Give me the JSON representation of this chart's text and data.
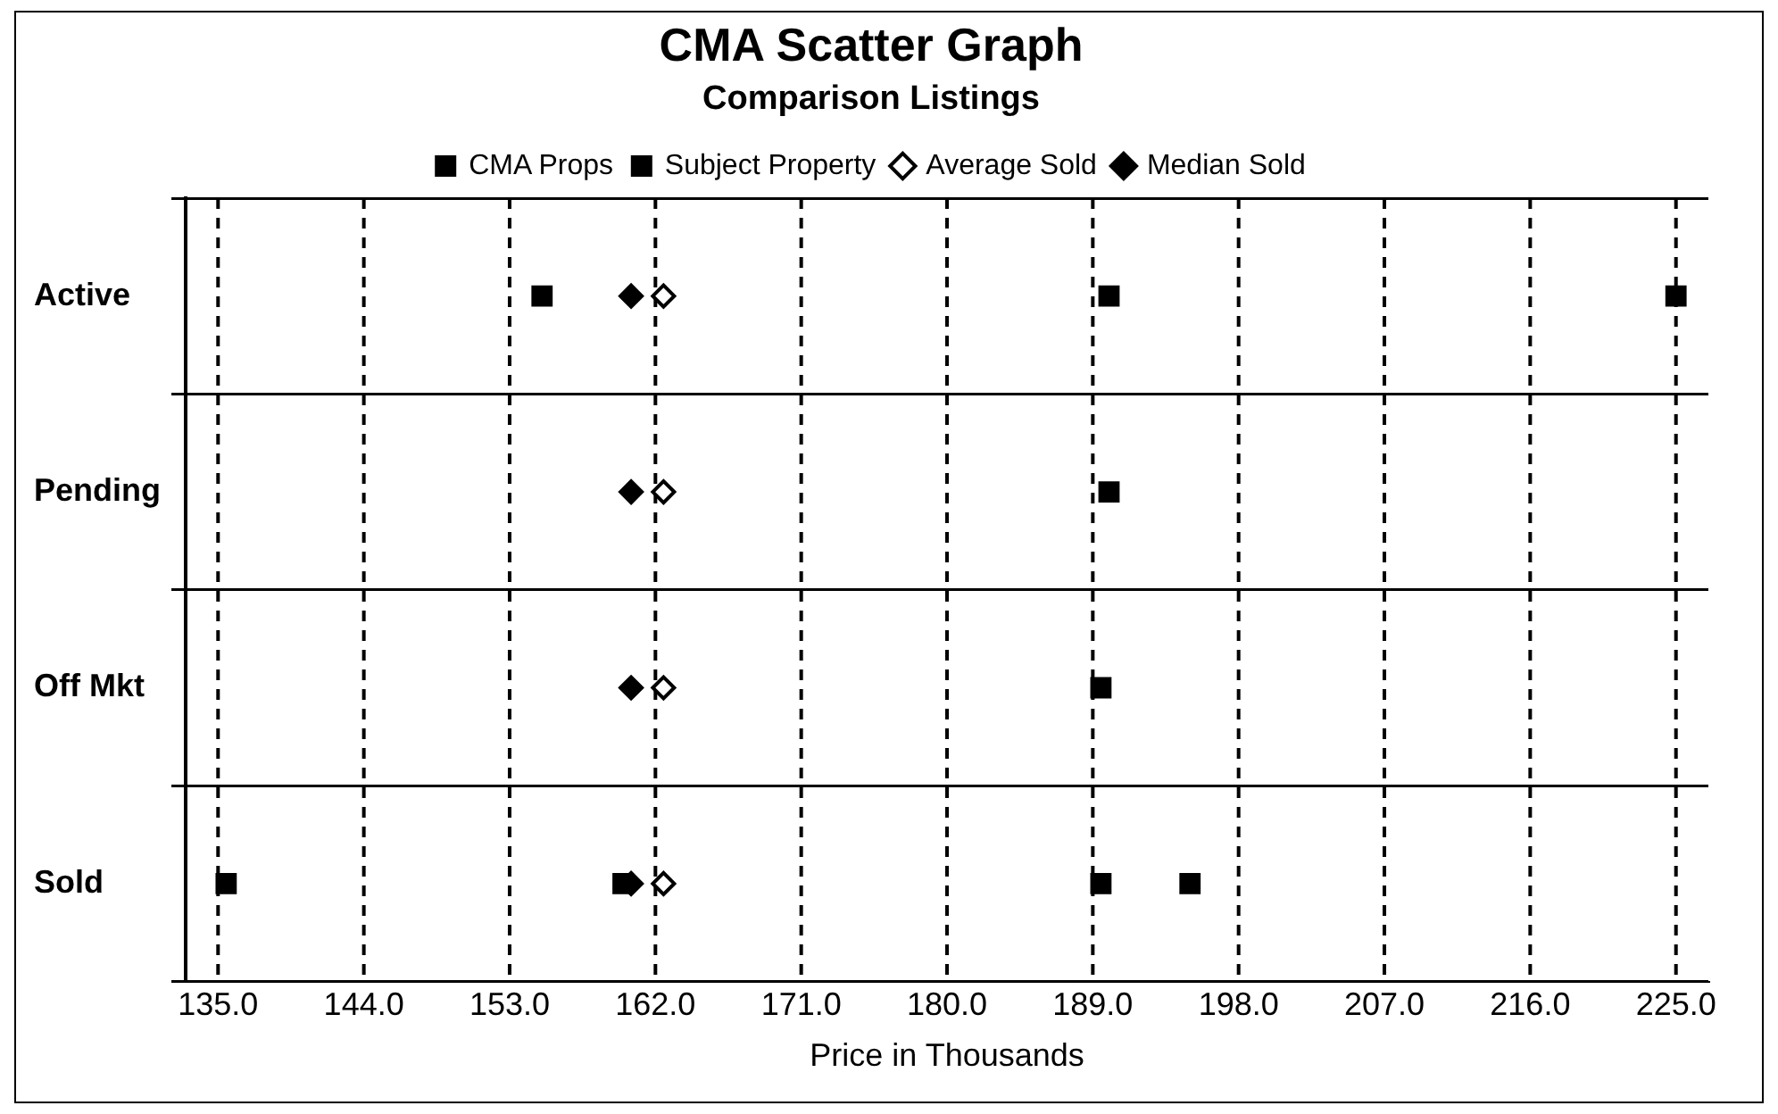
{
  "chart_data": {
    "type": "scatter",
    "title": "CMA Scatter Graph",
    "subtitle": "Comparison Listings",
    "xlabel": "Price in Thousands",
    "orientation": "horizontal",
    "categories": [
      "Active",
      "Pending",
      "Off Mkt",
      "Sold"
    ],
    "xlim": [
      133,
      227
    ],
    "xticks": [
      {
        "value": 135,
        "label": "135.0"
      },
      {
        "value": 144,
        "label": "144.0"
      },
      {
        "value": 153,
        "label": "153.0"
      },
      {
        "value": 162,
        "label": "162.0"
      },
      {
        "value": 171,
        "label": "171.0"
      },
      {
        "value": 180,
        "label": "180.0"
      },
      {
        "value": 189,
        "label": "189.0"
      },
      {
        "value": 198,
        "label": "198.0"
      },
      {
        "value": 207,
        "label": "207.0"
      },
      {
        "value": 216,
        "label": "216.0"
      },
      {
        "value": 225,
        "label": "225.0"
      }
    ],
    "grid": true,
    "legend": "top",
    "series": [
      {
        "name": "CMA Props",
        "color": "#000000",
        "marker": "square",
        "x": [
          "Active",
          "Active",
          "Pending",
          "Off Mkt",
          "Sold",
          "Sold",
          "Sold",
          "Sold"
        ],
        "values": [
          190,
          225,
          190,
          189.5,
          135.5,
          160,
          189.5,
          195
        ]
      },
      {
        "name": "Subject Property",
        "color": "#000000",
        "marker": "square",
        "x": [
          "Active"
        ],
        "values": [
          155
        ]
      },
      {
        "name": "Average Sold",
        "color": "#ffffff",
        "marker": "diamond",
        "x": [
          "Active",
          "Pending",
          "Off Mkt",
          "Sold"
        ],
        "values": [
          162.5,
          162.5,
          162.5,
          162.5
        ]
      },
      {
        "name": "Median Sold",
        "color": "#000000",
        "marker": "diamond",
        "x": [
          "Active",
          "Pending",
          "Off Mkt",
          "Sold"
        ],
        "values": [
          160.5,
          160.5,
          160.5,
          160.5
        ]
      }
    ]
  }
}
